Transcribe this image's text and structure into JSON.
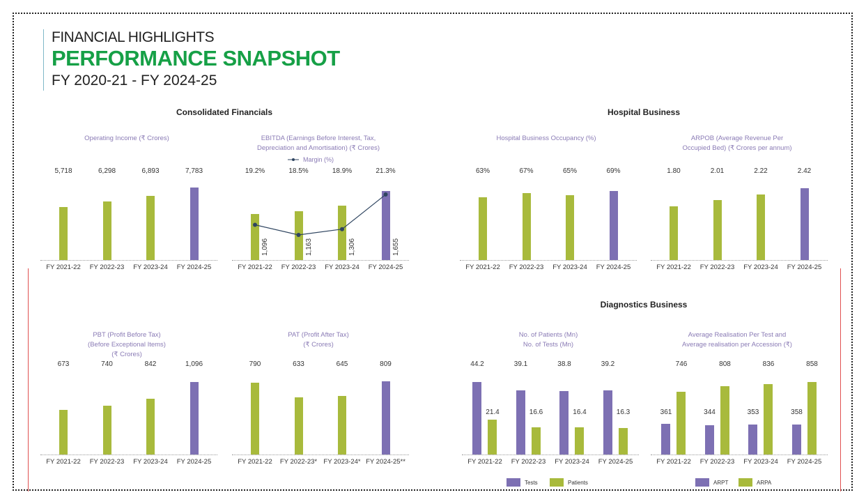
{
  "header": {
    "eyebrow": "FINANCIAL HIGHLIGHTS",
    "title": "PERFORMANCE SNAPSHOT",
    "period": "FY 2020-21 - FY 2024-25"
  },
  "sections": {
    "consolidated": "Consolidated Financials",
    "hospital": "Hospital Business",
    "diagnostics": "Diagnostics Business"
  },
  "colors": {
    "green": "#a8ba3c",
    "purple": "#7d70b3",
    "title_green": "#16a046",
    "line": "#2f4560"
  },
  "chart_data": [
    {
      "id": "operating-income",
      "type": "bar",
      "title": "Operating Income (₹ Crores)",
      "categories": [
        "FY 2021-22",
        "FY 2022-23",
        "FY 2023-24",
        "FY 2024-25"
      ],
      "values": [
        5718,
        6298,
        6893,
        7783
      ],
      "labels": [
        "5,718",
        "6,298",
        "6,893",
        "7,783"
      ],
      "highlight_last": true
    },
    {
      "id": "ebitda",
      "type": "bar+line",
      "title": "EBITDA (Earnings Before Interest, Tax,\nDepreciation and Amortisation) (₹ Crores)",
      "categories": [
        "FY 2021-22",
        "FY 2022-23",
        "FY 2023-24",
        "FY 2024-25"
      ],
      "values": [
        1096,
        1163,
        1306,
        1655
      ],
      "labels": [
        "1,096",
        "1,163",
        "1,306",
        "1,655"
      ],
      "line": {
        "name": "Margin (%)",
        "values": [
          19.2,
          18.5,
          18.9,
          21.3
        ],
        "labels": [
          "19.2%",
          "18.5%",
          "18.9%",
          "21.3%"
        ]
      },
      "highlight_last": true
    },
    {
      "id": "occupancy",
      "type": "bar",
      "title": "Hospital Business Occupancy (%)",
      "categories": [
        "FY 2021-22",
        "FY 2022-23",
        "FY 2023-24",
        "FY 2024-25"
      ],
      "values": [
        63,
        67,
        65,
        69
      ],
      "labels": [
        "63%",
        "67%",
        "65%",
        "69%"
      ],
      "highlight_last": true
    },
    {
      "id": "arpob",
      "type": "bar",
      "title": "ARPOB (Average Revenue Per\nOccupied Bed) (₹ Crores per annum)",
      "categories": [
        "FY 2021-22",
        "FY 2022-23",
        "FY 2023-24",
        "FY 2024-25"
      ],
      "values": [
        1.8,
        2.01,
        2.22,
        2.42
      ],
      "labels": [
        "1.80",
        "2.01",
        "2.22",
        "2.42"
      ],
      "highlight_last": true
    },
    {
      "id": "pbt",
      "type": "bar",
      "title": "PBT (Profit Before Tax)\n(Before Exceptional Items)\n(₹ Crores)",
      "categories": [
        "FY 2021-22",
        "FY 2022-23",
        "FY 2023-24",
        "FY 2024-25"
      ],
      "values": [
        673,
        740,
        842,
        1096
      ],
      "labels": [
        "673",
        "740",
        "842",
        "1,096"
      ],
      "highlight_last": true
    },
    {
      "id": "pat",
      "type": "bar",
      "title": "PAT (Profit After Tax)\n(₹ Crores)",
      "categories": [
        "FY 2021-22",
        "FY 2022-23*",
        "FY 2023-24*",
        "FY 2024-25**"
      ],
      "values": [
        790,
        633,
        645,
        809
      ],
      "labels": [
        "790",
        "633",
        "645",
        "809"
      ],
      "highlight_last": true
    },
    {
      "id": "patients-tests",
      "type": "grouped-bar",
      "title": "No. of Patients (Mn)\nNo. of Tests (Mn)",
      "categories": [
        "FY 2021-22",
        "FY 2022-23",
        "FY 2023-24",
        "FY 2024-25"
      ],
      "series": [
        {
          "name": "Tests",
          "color": "#7d70b3",
          "values": [
            44.2,
            39.1,
            38.8,
            39.2
          ],
          "labels": [
            "44.2",
            "39.1",
            "38.8",
            "39.2"
          ]
        },
        {
          "name": "Patients",
          "color": "#a8ba3c",
          "values": [
            21.4,
            16.6,
            16.4,
            16.3
          ],
          "labels": [
            "21.4",
            "16.6",
            "16.4",
            "16.3"
          ]
        }
      ]
    },
    {
      "id": "arpt-arpa",
      "type": "grouped-bar",
      "title": "Average Realisation Per Test and\nAverage realisation per Accession (₹)",
      "categories": [
        "FY 2021-22",
        "FY 2022-23",
        "FY 2023-24",
        "FY 2024-25"
      ],
      "series": [
        {
          "name": "ARPT",
          "color": "#7d70b3",
          "values": [
            361,
            344,
            353,
            358
          ],
          "labels": [
            "361",
            "344",
            "353",
            "358"
          ]
        },
        {
          "name": "ARPA",
          "color": "#a8ba3c",
          "values": [
            746,
            808,
            836,
            858
          ],
          "labels": [
            "746",
            "808",
            "836",
            "858"
          ]
        }
      ]
    }
  ]
}
